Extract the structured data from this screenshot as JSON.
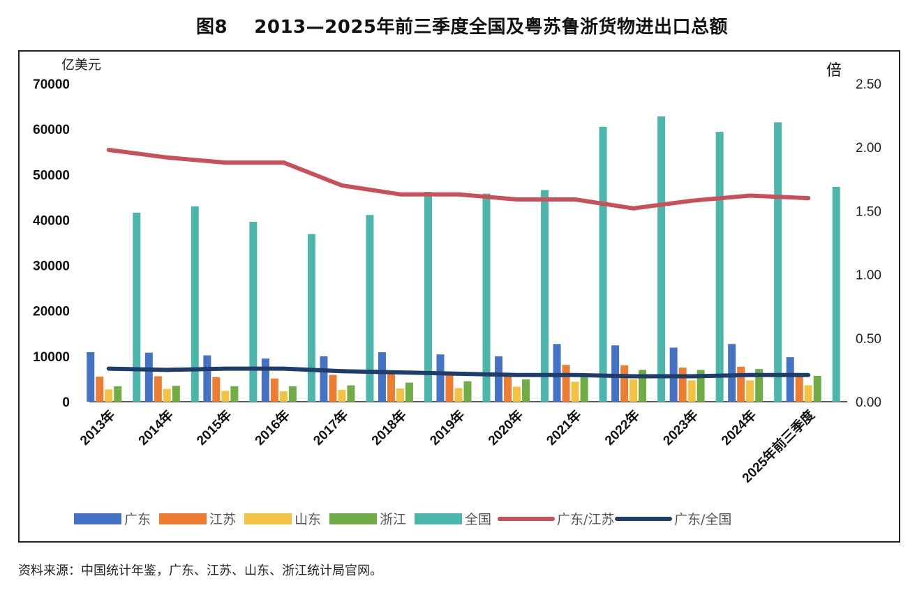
{
  "figure_title": "图8    2013—2025年前三季度全国及粤苏鲁浙货物进出口总额",
  "source_note": "资料来源：中国统计年鉴，广东、江苏、山东、浙江统计局官网。",
  "chart_data": {
    "type": "bar+line",
    "title": "2013—2025年前三季度全国及粤苏鲁浙货物进出口总额",
    "y_left_label": "亿美元",
    "y_right_label": "倍",
    "y_left_lim": [
      0,
      70000
    ],
    "y_right_lim": [
      0,
      2.5
    ],
    "y_left_ticks": [
      "0",
      "10000",
      "20000",
      "30000",
      "40000",
      "50000",
      "60000",
      "70000"
    ],
    "y_right_ticks": [
      "0.00",
      "0.50",
      "1.00",
      "1.50",
      "2.00",
      "2.50"
    ],
    "categories": [
      "2013年",
      "2014年",
      "2015年",
      "2016年",
      "2017年",
      "2018年",
      "2019年",
      "2020年",
      "2021年",
      "2022年",
      "2023年",
      "2024年",
      "2025年前三季度"
    ],
    "bar_series": [
      {
        "name": "广东",
        "color": "#4472C4",
        "values": [
          10900,
          10800,
          10200,
          9500,
          10000,
          10900,
          10400,
          10000,
          12700,
          12400,
          11900,
          12700,
          9800
        ]
      },
      {
        "name": "江苏",
        "color": "#ED7D31",
        "values": [
          5500,
          5600,
          5400,
          5100,
          5900,
          6600,
          6300,
          6400,
          8100,
          8000,
          7500,
          7700,
          5700
        ]
      },
      {
        "name": "山东",
        "color": "#F4C242",
        "values": [
          2700,
          2800,
          2400,
          2300,
          2600,
          2900,
          3000,
          3300,
          4400,
          4900,
          4700,
          4700,
          3600
        ]
      },
      {
        "name": "浙江",
        "color": "#70AD47",
        "values": [
          3400,
          3500,
          3400,
          3400,
          3600,
          4200,
          4500,
          4900,
          6000,
          7000,
          7000,
          7200,
          5700
        ]
      },
      {
        "name": "全国",
        "color": "#4DB6AC",
        "values": [
          41600,
          43000,
          39600,
          36900,
          41100,
          46200,
          45800,
          46600,
          60500,
          62800,
          59400,
          61500,
          47300
        ]
      }
    ],
    "line_series": [
      {
        "name": "广东/江苏",
        "color": "#C9505A",
        "axis": "right",
        "values": [
          1.98,
          1.92,
          1.88,
          1.88,
          1.7,
          1.63,
          1.63,
          1.59,
          1.59,
          1.52,
          1.58,
          1.62,
          1.6
        ]
      },
      {
        "name": "广东/全国",
        "color": "#1F3D6B",
        "axis": "right",
        "values": [
          0.26,
          0.25,
          0.26,
          0.26,
          0.24,
          0.23,
          0.22,
          0.21,
          0.21,
          0.2,
          0.2,
          0.21,
          0.21
        ]
      }
    ],
    "legend": [
      "广东",
      "江苏",
      "山东",
      "浙江",
      "全国",
      "广东/江苏",
      "广东/全国"
    ],
    "legend_position": "bottom"
  }
}
